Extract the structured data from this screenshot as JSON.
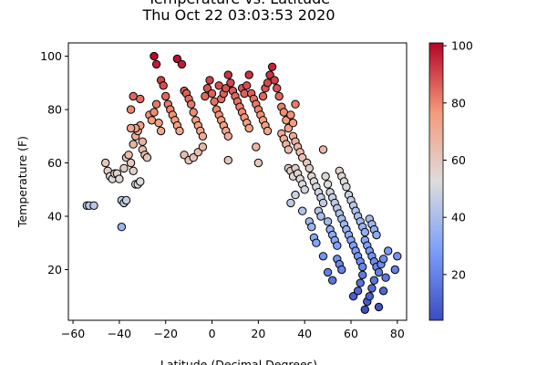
{
  "chart_data": {
    "type": "scatter",
    "title": "Temperature vs. Latitude",
    "subtitle": "Thu Oct 22 03:03:53 2020",
    "xlabel": "Latitude (Decimal Degrees)",
    "ylabel": "Temperature (F)",
    "xlim": [
      -62,
      84
    ],
    "ylim": [
      1,
      105
    ],
    "xticks": [
      -60,
      -40,
      -20,
      0,
      20,
      40,
      60,
      80
    ],
    "yticks": [
      20,
      40,
      60,
      80,
      100
    ],
    "grid": false,
    "colorbar": {
      "label": "",
      "cmap": "coolwarm",
      "range": [
        4,
        101
      ],
      "ticks": [
        20,
        40,
        60,
        80,
        100
      ]
    },
    "points": [
      [
        -54,
        44
      ],
      [
        -53,
        44
      ],
      [
        -51,
        44
      ],
      [
        -46,
        60
      ],
      [
        -45,
        57
      ],
      [
        -44,
        55
      ],
      [
        -43,
        54
      ],
      [
        -42,
        56
      ],
      [
        -41,
        56
      ],
      [
        -40,
        54
      ],
      [
        -39,
        46
      ],
      [
        -38,
        45
      ],
      [
        -37,
        46
      ],
      [
        -39,
        36
      ],
      [
        -38,
        58
      ],
      [
        -37,
        62
      ],
      [
        -36,
        63
      ],
      [
        -35,
        60
      ],
      [
        -34,
        57
      ],
      [
        -33,
        52
      ],
      [
        -32,
        52
      ],
      [
        -31,
        53
      ],
      [
        -34,
        67
      ],
      [
        -33,
        70
      ],
      [
        -32,
        72
      ],
      [
        -31,
        74
      ],
      [
        -33,
        73
      ],
      [
        -35,
        73
      ],
      [
        -35,
        80
      ],
      [
        -34,
        85
      ],
      [
        -31,
        84
      ],
      [
        -30,
        68
      ],
      [
        -30,
        65
      ],
      [
        -29,
        63
      ],
      [
        -28,
        62
      ],
      [
        -27,
        78
      ],
      [
        -26,
        76
      ],
      [
        -25,
        79
      ],
      [
        -24,
        82
      ],
      [
        -23,
        75
      ],
      [
        -22,
        72
      ],
      [
        -25,
        100
      ],
      [
        -24,
        97
      ],
      [
        -22,
        91
      ],
      [
        -21,
        89
      ],
      [
        -20,
        85
      ],
      [
        -19,
        82
      ],
      [
        -18,
        80
      ],
      [
        -17,
        78
      ],
      [
        -16,
        76
      ],
      [
        -15,
        74
      ],
      [
        -14,
        72
      ],
      [
        -15,
        99
      ],
      [
        -13,
        97
      ],
      [
        -12,
        87
      ],
      [
        -11,
        86
      ],
      [
        -10,
        84
      ],
      [
        -9,
        82
      ],
      [
        -8,
        79
      ],
      [
        -7,
        76
      ],
      [
        -6,
        74
      ],
      [
        -5,
        72
      ],
      [
        -4,
        70
      ],
      [
        -12,
        63
      ],
      [
        -10,
        61
      ],
      [
        -8,
        62
      ],
      [
        -6,
        64
      ],
      [
        -4,
        66
      ],
      [
        -3,
        85
      ],
      [
        -2,
        88
      ],
      [
        -1,
        91
      ],
      [
        0,
        86
      ],
      [
        1,
        83
      ],
      [
        2,
        80
      ],
      [
        3,
        78
      ],
      [
        4,
        76
      ],
      [
        5,
        74
      ],
      [
        6,
        72
      ],
      [
        7,
        70
      ],
      [
        3,
        89
      ],
      [
        4,
        84
      ],
      [
        5,
        86
      ],
      [
        6,
        88
      ],
      [
        7,
        93
      ],
      [
        8,
        90
      ],
      [
        9,
        87
      ],
      [
        10,
        85
      ],
      [
        11,
        83
      ],
      [
        12,
        81
      ],
      [
        13,
        79
      ],
      [
        14,
        77
      ],
      [
        15,
        75
      ],
      [
        16,
        73
      ],
      [
        7,
        61
      ],
      [
        13,
        88
      ],
      [
        14,
        86
      ],
      [
        15,
        89
      ],
      [
        16,
        93
      ],
      [
        17,
        86
      ],
      [
        18,
        84
      ],
      [
        19,
        82
      ],
      [
        20,
        80
      ],
      [
        21,
        78
      ],
      [
        22,
        76
      ],
      [
        23,
        74
      ],
      [
        24,
        72
      ],
      [
        19,
        66
      ],
      [
        20,
        60
      ],
      [
        22,
        85
      ],
      [
        23,
        88
      ],
      [
        24,
        90
      ],
      [
        25,
        93
      ],
      [
        26,
        96
      ],
      [
        27,
        91
      ],
      [
        28,
        88
      ],
      [
        29,
        85
      ],
      [
        30,
        81
      ],
      [
        31,
        79
      ],
      [
        32,
        76
      ],
      [
        33,
        73
      ],
      [
        30,
        71
      ],
      [
        31,
        69
      ],
      [
        32,
        67
      ],
      [
        33,
        65
      ],
      [
        34,
        78
      ],
      [
        35,
        75
      ],
      [
        36,
        82
      ],
      [
        35,
        70
      ],
      [
        36,
        68
      ],
      [
        37,
        66
      ],
      [
        38,
        64
      ],
      [
        39,
        62
      ],
      [
        33,
        58
      ],
      [
        34,
        57
      ],
      [
        35,
        55
      ],
      [
        36,
        58
      ],
      [
        37,
        56
      ],
      [
        38,
        54
      ],
      [
        39,
        52
      ],
      [
        40,
        50
      ],
      [
        34,
        45
      ],
      [
        36,
        48
      ],
      [
        39,
        42
      ],
      [
        41,
        60
      ],
      [
        42,
        58
      ],
      [
        43,
        55
      ],
      [
        44,
        53
      ],
      [
        45,
        51
      ],
      [
        46,
        49
      ],
      [
        47,
        47
      ],
      [
        48,
        45
      ],
      [
        42,
        38
      ],
      [
        43,
        36
      ],
      [
        44,
        32
      ],
      [
        45,
        30
      ],
      [
        46,
        42
      ],
      [
        47,
        40
      ],
      [
        48,
        65
      ],
      [
        49,
        55
      ],
      [
        50,
        52
      ],
      [
        51,
        49
      ],
      [
        52,
        47
      ],
      [
        53,
        45
      ],
      [
        54,
        43
      ],
      [
        55,
        41
      ],
      [
        56,
        39
      ],
      [
        50,
        38
      ],
      [
        51,
        35
      ],
      [
        52,
        33
      ],
      [
        53,
        31
      ],
      [
        54,
        29
      ],
      [
        55,
        57
      ],
      [
        56,
        55
      ],
      [
        57,
        53
      ],
      [
        58,
        51
      ],
      [
        59,
        48
      ],
      [
        48,
        25
      ],
      [
        50,
        19
      ],
      [
        52,
        16
      ],
      [
        54,
        24
      ],
      [
        55,
        22
      ],
      [
        56,
        20
      ],
      [
        57,
        37
      ],
      [
        58,
        35
      ],
      [
        59,
        33
      ],
      [
        60,
        31
      ],
      [
        61,
        29
      ],
      [
        62,
        27
      ],
      [
        63,
        25
      ],
      [
        64,
        23
      ],
      [
        65,
        21
      ],
      [
        60,
        46
      ],
      [
        61,
        44
      ],
      [
        62,
        42
      ],
      [
        63,
        40
      ],
      [
        64,
        38
      ],
      [
        65,
        36
      ],
      [
        66,
        34
      ],
      [
        61,
        10
      ],
      [
        63,
        12
      ],
      [
        64,
        15
      ],
      [
        65,
        18
      ],
      [
        66,
        5
      ],
      [
        67,
        8
      ],
      [
        68,
        10
      ],
      [
        69,
        13
      ],
      [
        70,
        16
      ],
      [
        66,
        31
      ],
      [
        67,
        29
      ],
      [
        68,
        27
      ],
      [
        69,
        25
      ],
      [
        70,
        23
      ],
      [
        71,
        21
      ],
      [
        72,
        19
      ],
      [
        68,
        39
      ],
      [
        69,
        37
      ],
      [
        70,
        35
      ],
      [
        71,
        33
      ],
      [
        72,
        6
      ],
      [
        74,
        12
      ],
      [
        75,
        17
      ],
      [
        76,
        27
      ],
      [
        79,
        20
      ],
      [
        80,
        25
      ],
      [
        73,
        22
      ],
      [
        74,
        24
      ]
    ]
  }
}
